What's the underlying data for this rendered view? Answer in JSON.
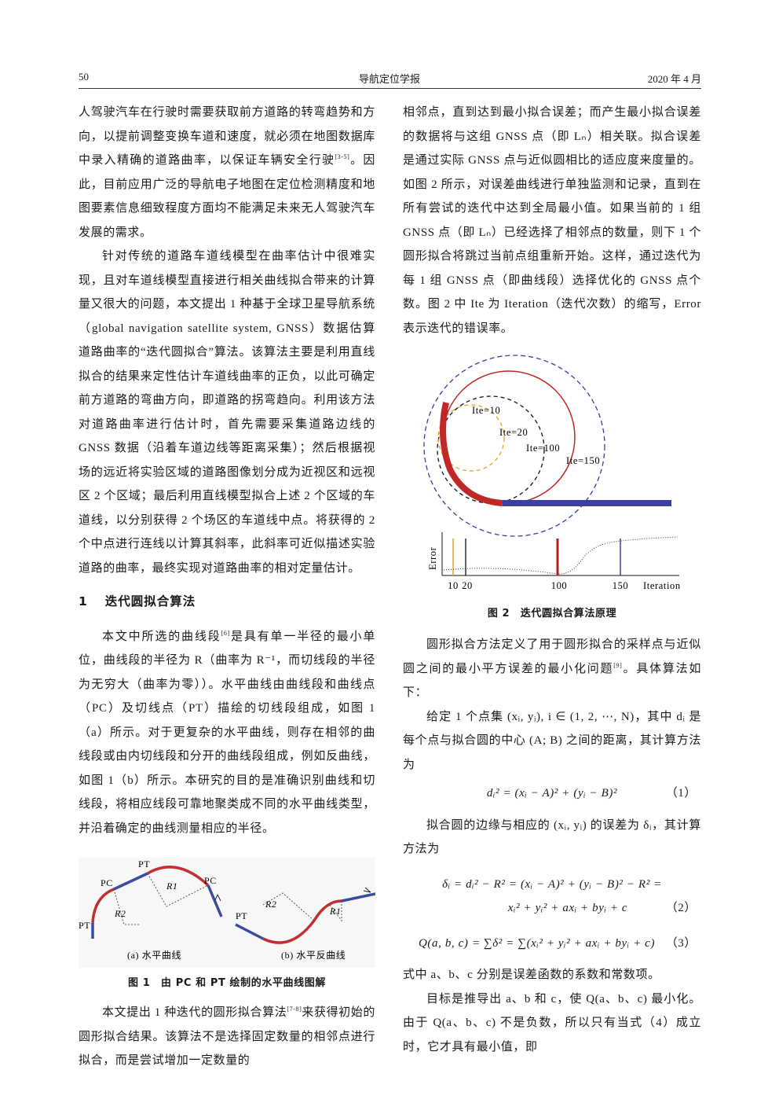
{
  "header": {
    "page": "50",
    "journal": "导航定位学报",
    "date": "2020 年 4 月"
  },
  "left_column": {
    "paragraph_1": [
      "人驾驶汽车在行驶时需要获取前方道路的转弯趋势和方向，以提前调整变换车道和速度，就必须在地图数据库中录入精确的道路曲率，以保证车辆安全行驶",
      "[3-5]",
      "。因此，目前应用广泛的导航电子地图在定位检测精度和地图要素信息细致程度方面均不能满足未来无人驾驶汽车发展的需求。"
    ],
    "paragraph_2": "针对传统的道路车道线模型在曲率估计中很难实现，且对车道线模型直接进行相关曲线拟合带来的计算量又很大的问题，本文提出 1 种基于全球卫星导航系统（global navigation satellite system, GNSS）数据估算道路曲率的“迭代圆拟合”算法。该算法主要是利用直线拟合的结果来定性估计车道线曲率的正负，以此可确定前方道路的弯曲方向，即道路的拐弯趋向。利用该方法对道路曲率进行估计时，首先需要采集道路边线的 GNSS 数据（沿着车道边线等距离采集）；然后根据视场的远近将实验区域的道路图像划分成为近视区和远视区 2 个区域；最后利用直线模型拟合上述 2 个区域的车道线，以分别获得 2 个场区的车道线中点。将获得的 2 个中点进行连线以计算其斜率，此斜率可近似描述实验道路的曲率，最终实现对道路曲率的相对定量估计。",
    "section": {
      "number": "1",
      "title": "迭代圆拟合算法"
    },
    "paragraph_3": [
      "本文中所选的曲线段",
      "[6]",
      "是具有单一半径的最小单位，曲线段的半径为 R（曲率为 R⁻¹，而切线段的半径为无穷大（曲率为零））。水平曲线由曲线段和曲线点（PC）及切线点（PT）描绘的切线段组成，如图 1（a）所示。对于更复杂的水平曲线，则存在相邻的曲线段或由内切线段和分开的曲线段组成，例如反曲线，如图 1（b）所示。本研究的目的是准确识别曲线和切线段，将相应线段可靠地聚类成不同的水平曲线类型，并沿着确定的曲线测量相应的半径。"
    ],
    "figure_1": {
      "labels_a": [
        "PT",
        "PC",
        "PC",
        "R1",
        "R2",
        "PT"
      ],
      "labels_b": [
        "R2",
        "R1",
        "PT"
      ],
      "subcaption_a": "(a) 水平曲线",
      "subcaption_b": "(b) 水平反曲线",
      "caption": "图 1　由 PC 和 PT 绘制的水平曲线图解"
    },
    "paragraph_4": [
      "本文提出 1 种迭代的圆形拟合算法",
      "[7-8]",
      "来获得初始的圆形拟合结果。该算法不是选择固定数量的相邻点进行拟合，而是尝试增加一定数量的"
    ]
  },
  "right_column": {
    "paragraph_1": "相邻点，直到达到最小拟合误差；而产生最小拟合误差的数据将与这组 GNSS 点（即 Lₙ）相关联。拟合误差是通过实际 GNSS 点与近似圆相比的适应度来度量的。如图 2 所示，对误差曲线进行单独监测和记录，直到在所有尝试的迭代中达到全局最小值。如果当前的 1 组 GNSS 点（即 Lₙ）已经选择了相邻点的数量，则下 1 个圆形拟合将跳过当前点组重新开始。这样，通过迭代为每 1 组 GNSS 点（即曲线段）选择优化的 GNSS 点个数。图 2 中 Ite 为 Iteration（迭代次数）的缩写，Error 表示迭代的错误率。",
    "figure_2": {
      "labels": [
        "Ite=10",
        "Ite=20",
        "Ite=100",
        "Ite=150"
      ],
      "y_label": "Error",
      "x_ticks": [
        "10",
        "20",
        "100",
        "150"
      ],
      "x_label": "Iteration",
      "caption": "图 2　迭代圆拟合算法原理"
    },
    "paragraph_2": [
      "圆形拟合方法定义了用于圆形拟合的采样点与近似圆之间的最小平方误差的最小化问题",
      "[9]",
      "。具体算法如下："
    ],
    "paragraph_3": "给定 1 个点集 (xᵢ, yᵢ), i ∈ (1, 2, ⋯, N)，其中 dᵢ 是每个点与拟合圆的中心 (A; B) 之间的距离，其计算方法为",
    "equation_1": {
      "formula": "dᵢ² = (xᵢ − A)² + (yᵢ − B)²",
      "number": "（1）"
    },
    "paragraph_4": "拟合圆的边缘与相应的 (xᵢ, yᵢ) 的误差为 δᵢ，其计算方法为",
    "equation_2": {
      "line_1": "δᵢ = dᵢ² − R² = (xᵢ − A)² + (yᵢ − B)² − R² =",
      "line_2": "xᵢ² + yᵢ² + axᵢ + byᵢ + c",
      "number": "（2）"
    },
    "equation_3": {
      "formula": "Q(a, b, c) = ∑δ² = ∑(xᵢ² + yᵢ² + axᵢ + byᵢ + c)",
      "number": "（3）"
    },
    "paragraph_5": "式中 a、b、c 分别是误差函数的系数和常数项。",
    "paragraph_6": "目标是推导出 a、b 和 c，使 Q(a、b、c) 最小化。由于 Q(a、b、c) 不是负数，所以只有当式（4）成立时，它才具有最小值，即"
  }
}
